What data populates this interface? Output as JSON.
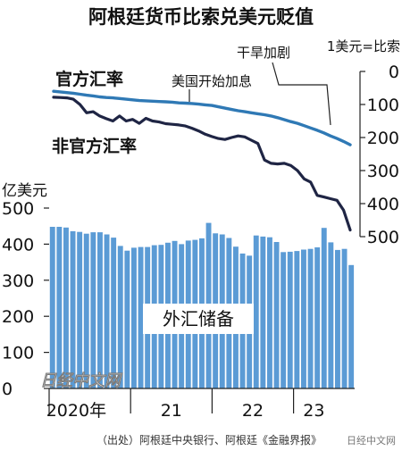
{
  "title": "阿根廷货币比索兑美元贬值",
  "source": "（出处）阿根廷中央银行、阿根廷《金融界报》",
  "watermark": "日经中文网",
  "wechat_badge": "日经中文网",
  "chart_data": [
    {
      "type": "line",
      "axis_title": "1美元=比索",
      "yaxis_side": "right",
      "yaxis_inverted": true,
      "ylim": [
        0,
        500
      ],
      "yticks": [
        "0",
        "100",
        "200",
        "300",
        "400",
        "500"
      ],
      "series": [
        {
          "name": "官方汇率",
          "color": "#2f79b5",
          "values": [
            60,
            62,
            64,
            66,
            69,
            72,
            74,
            77,
            79,
            80,
            82,
            84,
            86,
            88,
            89,
            90,
            91,
            92,
            93,
            95,
            96,
            97,
            99,
            101,
            103,
            107,
            111,
            115,
            119,
            122,
            125,
            128,
            131,
            135,
            140,
            146,
            152,
            157,
            164,
            171,
            178,
            186,
            195,
            203,
            212,
            222
          ]
        },
        {
          "name": "非官方汇率",
          "color": "#1f2544",
          "values": [
            78,
            79,
            80,
            84,
            100,
            125,
            122,
            135,
            143,
            150,
            135,
            150,
            145,
            157,
            142,
            150,
            153,
            158,
            160,
            162,
            165,
            172,
            180,
            190,
            197,
            203,
            206,
            200,
            195,
            198,
            208,
            218,
            268,
            278,
            280,
            278,
            285,
            300,
            325,
            335,
            375,
            380,
            385,
            390,
            420,
            480
          ]
        }
      ],
      "annotations": [
        "美国开始加息",
        "干旱加剧"
      ]
    },
    {
      "type": "bar",
      "ylabel": "亿美元",
      "ylim": [
        0,
        500
      ],
      "yticks": [
        "0",
        "100",
        "200",
        "300",
        "400",
        "500"
      ],
      "color": "#5b9bd5",
      "x_tick_labels": [
        "2020年",
        "21",
        "22",
        "23"
      ],
      "values": [
        448,
        448,
        446,
        436,
        434,
        429,
        433,
        433,
        427,
        418,
        395,
        382,
        390,
        392,
        392,
        397,
        398,
        404,
        409,
        400,
        410,
        412,
        416,
        459,
        430,
        427,
        417,
        393,
        374,
        368,
        424,
        421,
        419,
        406,
        378,
        379,
        381,
        385,
        387,
        391,
        445,
        405,
        384,
        387,
        342
      ],
      "inner_label": "外汇储备"
    }
  ]
}
